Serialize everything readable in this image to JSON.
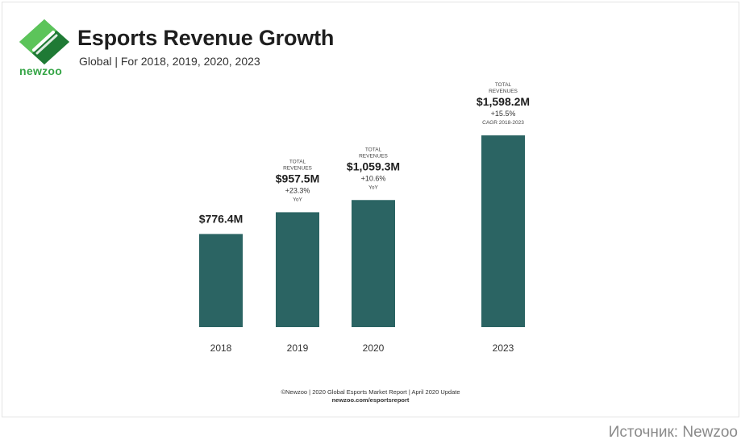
{
  "header": {
    "logo_text": "newzoo",
    "title": "Esports Revenue Growth",
    "subtitle": "Global | For 2018, 2019, 2020, 2023"
  },
  "chart_data": {
    "type": "bar",
    "title": "Esports Revenue Growth",
    "subtitle": "Global | For 2018, 2019, 2020, 2023",
    "categories": [
      "2018",
      "2019",
      "2020",
      "2023"
    ],
    "values": [
      776.4,
      957.5,
      1059.3,
      1598.2
    ],
    "unit": "$M",
    "bar_color": "#2b6463",
    "ylim": [
      0,
      1598.2
    ],
    "grid": false,
    "annotations": [
      {
        "caption": "",
        "value_label": "$776.4M",
        "growth": "",
        "growth_note": ""
      },
      {
        "caption": "TOTAL REVENUES",
        "value_label": "$957.5M",
        "growth": "+23.3%",
        "growth_note": "YoY"
      },
      {
        "caption": "TOTAL REVENUES",
        "value_label": "$1,059.3M",
        "growth": "+10.6%",
        "growth_note": "YoY"
      },
      {
        "caption": "TOTAL REVENUES",
        "value_label": "$1,598.2M",
        "growth": "+15.5%",
        "growth_note": "CAGR 2018-2023"
      }
    ]
  },
  "footer": {
    "credit": "©Newzoo | 2020 Global Esports Market Report | April 2020 Update",
    "url": "newzoo.com/esportsreport"
  },
  "source": "Источник: Newzoo",
  "colors": {
    "bar": "#2b6463",
    "logo_green": "#35a546",
    "logo_dark": "#1f7a35"
  }
}
